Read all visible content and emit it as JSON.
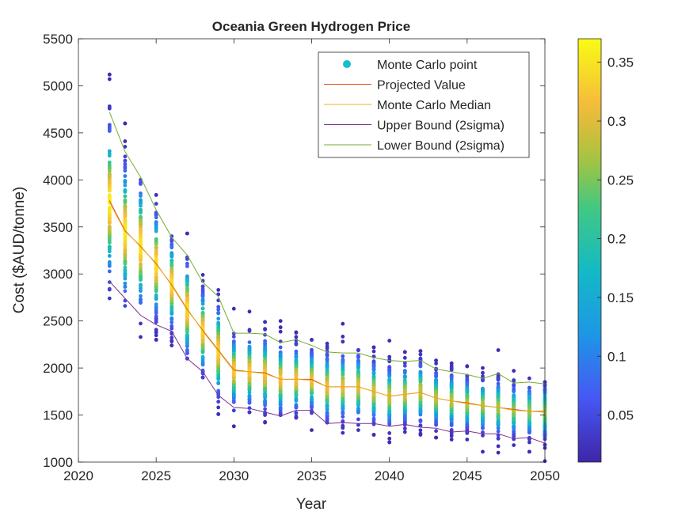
{
  "chart_data": {
    "type": "scatter",
    "title": "Oceania Green Hydrogen Price",
    "xlabel": "Year",
    "ylabel": "Cost ($AUD/tonne)",
    "xlim": [
      2020,
      2050
    ],
    "ylim": [
      1000,
      5500
    ],
    "x_ticks": [
      2020,
      2025,
      2030,
      2035,
      2040,
      2045,
      2050
    ],
    "y_ticks": [
      1000,
      1500,
      2000,
      2500,
      3000,
      3500,
      4000,
      4500,
      5000,
      5500
    ],
    "grid": false,
    "legend_position": "top-right",
    "x": [
      2022,
      2023,
      2024,
      2025,
      2026,
      2027,
      2028,
      2029,
      2030,
      2031,
      2032,
      2033,
      2034,
      2035,
      2036,
      2037,
      2038,
      2039,
      2040,
      2041,
      2042,
      2043,
      2044,
      2045,
      2046,
      2047,
      2048,
      2049,
      2050
    ],
    "series": [
      {
        "name": "Monte Carlo point",
        "kind": "scatter",
        "color": "#17becf",
        "point_min": [
          2740,
          2660,
          2330,
          2300,
          2240,
          2100,
          1900,
          1510,
          1380,
          1530,
          1420,
          1500,
          1470,
          1340,
          1420,
          1310,
          1340,
          1290,
          1210,
          1320,
          1290,
          1260,
          1240,
          1240,
          1110,
          1100,
          1180,
          1110,
          1010
        ],
        "point_max": [
          5120,
          4600,
          4000,
          3840,
          3400,
          3430,
          2990,
          2830,
          2630,
          2600,
          2490,
          2500,
          2380,
          2300,
          2260,
          2470,
          2190,
          2220,
          2290,
          2170,
          2180,
          2080,
          2050,
          2020,
          2000,
          2190,
          1970,
          1890,
          1850
        ]
      },
      {
        "name": "Projected Value",
        "kind": "line",
        "color": "#d95319",
        "values": [
          3780,
          3460,
          3290,
          3110,
          2880,
          2620,
          2400,
          2190,
          1980,
          1960,
          1950,
          1880,
          1880,
          1880,
          1800,
          1800,
          1800,
          1750,
          1700,
          1720,
          1740,
          1680,
          1650,
          1630,
          1600,
          1580,
          1560,
          1540,
          1540
        ]
      },
      {
        "name": "Monte Carlo Median",
        "kind": "line",
        "color": "#edb120",
        "values": [
          3760,
          3450,
          3300,
          3100,
          2890,
          2630,
          2390,
          2180,
          1970,
          1960,
          1940,
          1880,
          1880,
          1870,
          1800,
          1800,
          1800,
          1750,
          1700,
          1720,
          1740,
          1680,
          1650,
          1620,
          1600,
          1580,
          1550,
          1540,
          1530
        ]
      },
      {
        "name": "Upper Bound (2sigma)",
        "kind": "line",
        "color": "#7e2f8e",
        "values": [
          2920,
          2740,
          2560,
          2460,
          2390,
          2100,
          1960,
          1710,
          1580,
          1570,
          1530,
          1490,
          1550,
          1550,
          1410,
          1420,
          1410,
          1410,
          1380,
          1400,
          1370,
          1360,
          1320,
          1330,
          1300,
          1300,
          1250,
          1260,
          1200
        ]
      },
      {
        "name": "Lower Bound (2sigma)",
        "kind": "line",
        "color": "#77ac30",
        "values": [
          4720,
          4300,
          4030,
          3680,
          3390,
          3200,
          2910,
          2760,
          2370,
          2370,
          2360,
          2270,
          2300,
          2240,
          2170,
          2160,
          2160,
          2110,
          2080,
          2070,
          2080,
          1990,
          1960,
          1930,
          1890,
          1940,
          1840,
          1850,
          1830
        ]
      }
    ],
    "colorbar": {
      "min": 0.01,
      "max": 0.37,
      "ticks": [
        0.05,
        0.1,
        0.15,
        0.2,
        0.25,
        0.3,
        0.35
      ],
      "tick_labels": [
        "0.05",
        "0.1",
        "0.15",
        "0.2",
        "0.25",
        "0.3",
        "0.35"
      ],
      "colormap": "parula"
    }
  }
}
